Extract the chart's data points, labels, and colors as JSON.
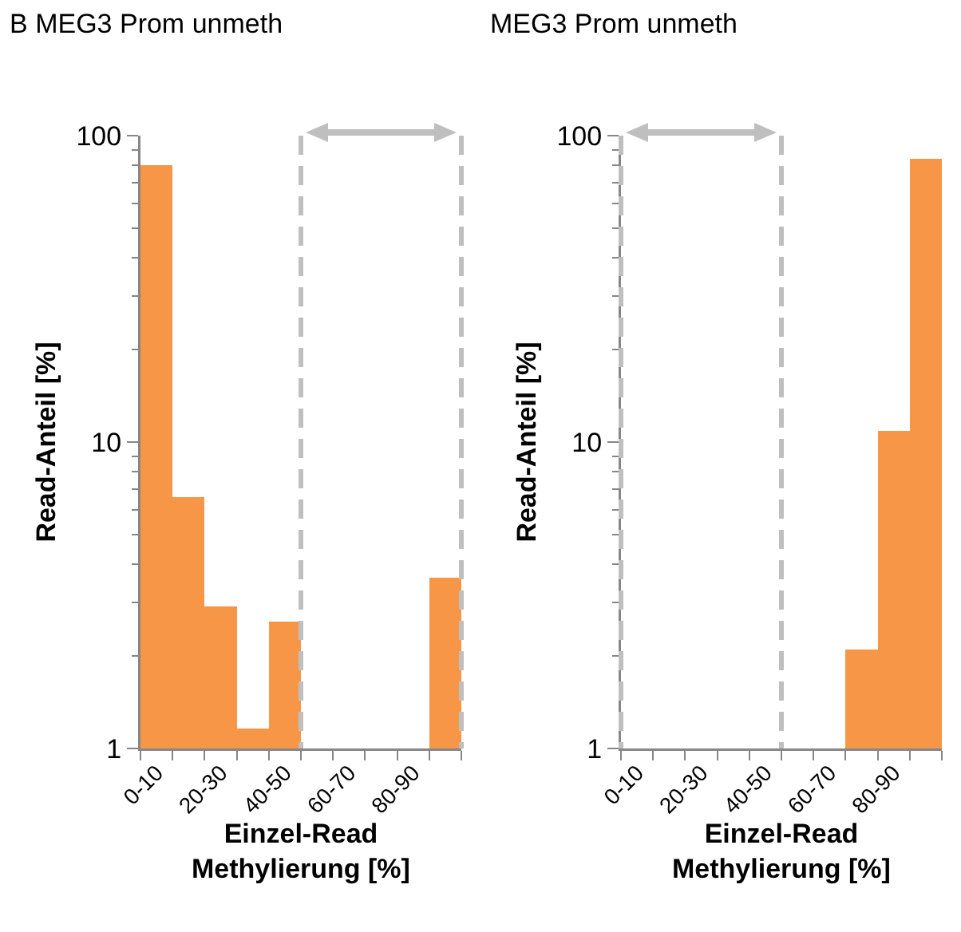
{
  "chart_data": [
    {
      "type": "bar",
      "title": "B MEG3 Prom unmeth",
      "xlabel": "Einzel-Read\nMethylierung [%]",
      "ylabel": "Read-Anteil [%]",
      "categories": [
        "0-10",
        null,
        "20-30",
        null,
        "40-50",
        null,
        "60-70",
        null,
        "80-90",
        null
      ],
      "values": [
        80,
        6.6,
        2.9,
        1.16,
        2.6,
        null,
        null,
        null,
        null,
        3.6
      ],
      "color": "#f79646",
      "log": "y",
      "ylim": [
        1,
        100
      ],
      "yticks": [
        1,
        10,
        100
      ],
      "grid": false
    },
    {
      "type": "bar",
      "title": "MEG3 Prom unmeth",
      "xlabel": "Einzel-Read\nMethylierung [%]",
      "ylabel": "Read-Anteil [%]",
      "categories": [
        "0-10",
        null,
        "20-30",
        null,
        "40-50",
        null,
        "60-70",
        null,
        "80-90",
        null
      ],
      "values": [
        null,
        null,
        null,
        null,
        null,
        null,
        null,
        2.1,
        10.9,
        84
      ],
      "color": "#f79646",
      "log": "y",
      "ylim": [
        1,
        100
      ],
      "yticks": [
        1,
        10,
        100
      ],
      "grid": false
    }
  ]
}
